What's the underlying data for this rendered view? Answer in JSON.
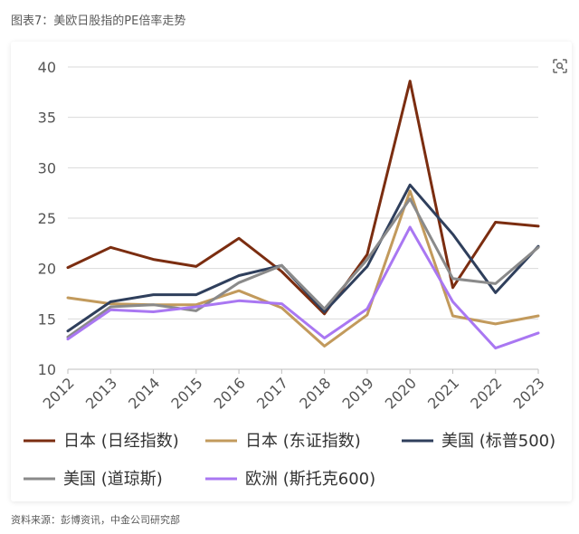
{
  "caption": "图表7：美欧日股指的PE倍率走势",
  "source": "资料来源：彭博资讯，中金公司研究部",
  "icon": "lens-icon",
  "chart_data": {
    "type": "line",
    "title": "",
    "xlabel": "",
    "ylabel": "",
    "ylim": [
      10,
      40
    ],
    "yticks": [
      10,
      15,
      20,
      25,
      30,
      35,
      40
    ],
    "grid": true,
    "legend_placement": "bottom",
    "x": [
      "2012",
      "2013",
      "2014",
      "2015",
      "2016",
      "2017",
      "2018",
      "2019",
      "2020",
      "2021",
      "2022",
      "2023"
    ],
    "series": [
      {
        "name": "日本 (日经指数)",
        "color": "#7b2d10",
        "values": [
          20.1,
          22.1,
          20.9,
          20.2,
          23.0,
          19.7,
          15.5,
          21.4,
          38.6,
          18.1,
          24.6,
          24.2
        ]
      },
      {
        "name": "日本 (东证指数)",
        "color": "#c29a5c",
        "values": [
          17.1,
          16.5,
          16.4,
          16.4,
          17.8,
          16.1,
          12.3,
          15.4,
          27.7,
          15.3,
          14.5,
          15.3
        ]
      },
      {
        "name": "美国 (标普500)",
        "color": "#2f3f5c",
        "values": [
          13.8,
          16.7,
          17.4,
          17.4,
          19.3,
          20.3,
          15.7,
          20.2,
          28.3,
          23.4,
          17.6,
          22.2
        ]
      },
      {
        "name": "美国 (道琼斯)",
        "color": "#8a8a8a",
        "values": [
          13.2,
          16.2,
          16.4,
          15.8,
          18.6,
          20.3,
          16.0,
          20.9,
          26.9,
          19.0,
          18.5,
          22.1
        ]
      },
      {
        "name": "欧洲 (斯托克600)",
        "color": "#a977f2",
        "values": [
          13.0,
          15.9,
          15.7,
          16.2,
          16.8,
          16.5,
          13.1,
          16.0,
          24.1,
          16.7,
          12.1,
          13.6
        ]
      }
    ]
  }
}
